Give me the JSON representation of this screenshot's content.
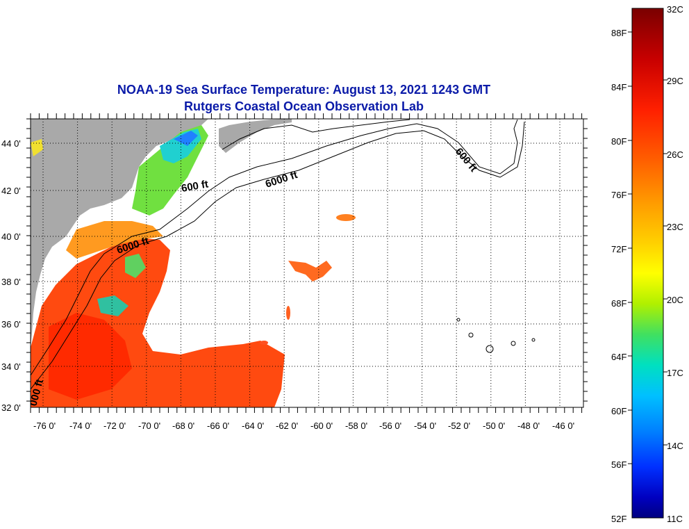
{
  "title": {
    "line1": "NOAA-19 Sea Surface Temperature:  August 13, 2021 1243 GMT",
    "line2": "Rutgers Coastal Ocean Observation Lab"
  },
  "map": {
    "lon_labels": [
      "-76 0'",
      "-74 0'",
      "-72 0'",
      "-70 0'",
      "-68 0'",
      "-66 0'",
      "-64 0'",
      "-62 0'",
      "-60 0'",
      "-58 0'",
      "-56 0'",
      "-54 0'",
      "-52 0'",
      "-50 0'",
      "-48 0'",
      "-46 0'"
    ],
    "lat_labels": [
      "44 0'",
      "42 0'",
      "40 0'",
      "38 0'",
      "36 0'",
      "34 0'",
      "32 0'"
    ],
    "contour_labels": [
      "600 ft",
      "6000 ft",
      "6000 ft",
      "600 ft",
      "000 ft"
    ],
    "colors": {
      "land": "#a9a9a9",
      "ocean_missing": "#ffffff",
      "grid": "#000000"
    }
  },
  "colorbar": {
    "fahrenheit": [
      "88F",
      "84F",
      "80F",
      "76F",
      "72F",
      "68F",
      "64F",
      "60F",
      "56F",
      "52F"
    ],
    "celsius": [
      "32C",
      "29C",
      "26C",
      "23C",
      "20C",
      "17C",
      "14C",
      "11C"
    ],
    "gradient": [
      "#7a0000",
      "#c00000",
      "#ff2000",
      "#ff6000",
      "#ff9a00",
      "#ffd000",
      "#ffff00",
      "#b0f000",
      "#40e060",
      "#00e0c0",
      "#00c0ff",
      "#0080ff",
      "#0030ff",
      "#0000c0",
      "#000080"
    ]
  }
}
